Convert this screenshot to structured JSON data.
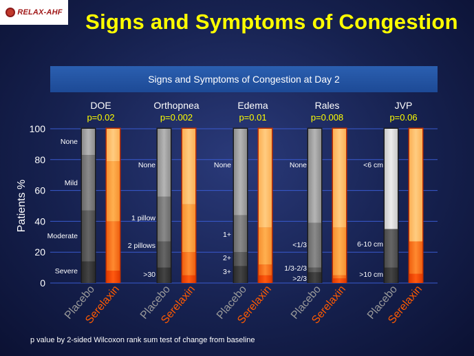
{
  "logo_text": "RELAX-AHF",
  "slide_title": "Signs and Symptoms of Congestion",
  "footnote": "p value by 2-sided Wilcoxon rank sum test of change from baseline",
  "colors": {
    "title": "#ffff00",
    "pvalue": "#ffff00",
    "gridline": "#3a5bd0",
    "header_bar": "#2456a8",
    "placebo_dark": "#3a3a3a",
    "serelaxin_dark": "#ff4a00"
  },
  "chart_data": {
    "type": "bar",
    "subtype": "stacked",
    "title": "Signs and Symptoms of Congestion at Day 2",
    "ylabel": "Patients %",
    "ylim": [
      0,
      100
    ],
    "yticks": [
      0,
      20,
      40,
      60,
      80,
      100
    ],
    "grid": true,
    "bar_labels": [
      "Placebo",
      "Serelaxin"
    ],
    "groups": [
      {
        "name": "DOE",
        "pvalue": "p=0.02",
        "levels": [
          "Severe",
          "Moderate",
          "Mild",
          "None"
        ],
        "placebo": [
          14,
          33,
          36,
          17
        ],
        "serelaxin": [
          8,
          32,
          39,
          21
        ]
      },
      {
        "name": "Orthopnea",
        "pvalue": "p=0.002",
        "levels": [
          ">30",
          "2 pillows",
          "1 pillow",
          "None"
        ],
        "placebo": [
          10,
          17,
          29,
          44
        ],
        "serelaxin": [
          5,
          15,
          31,
          49
        ]
      },
      {
        "name": "Edema",
        "pvalue": "p=0.01",
        "levels": [
          "3+",
          "2+",
          "1+",
          "None"
        ],
        "placebo": [
          11,
          9,
          24,
          56
        ],
        "serelaxin": [
          5,
          7,
          24,
          64
        ]
      },
      {
        "name": "Rales",
        "pvalue": "p=0.008",
        "levels": [
          ">2/3",
          "1/3-2/3",
          "<1/3",
          "None"
        ],
        "placebo": [
          7,
          3,
          29,
          61
        ],
        "serelaxin": [
          3,
          2,
          31,
          64
        ]
      },
      {
        "name": "JVP",
        "pvalue": "p=0.06",
        "levels": [
          ">10 cm",
          "6-10 cm",
          "<6 cm"
        ],
        "placebo": [
          10,
          25,
          65
        ],
        "serelaxin": [
          6,
          21,
          73
        ]
      }
    ]
  }
}
